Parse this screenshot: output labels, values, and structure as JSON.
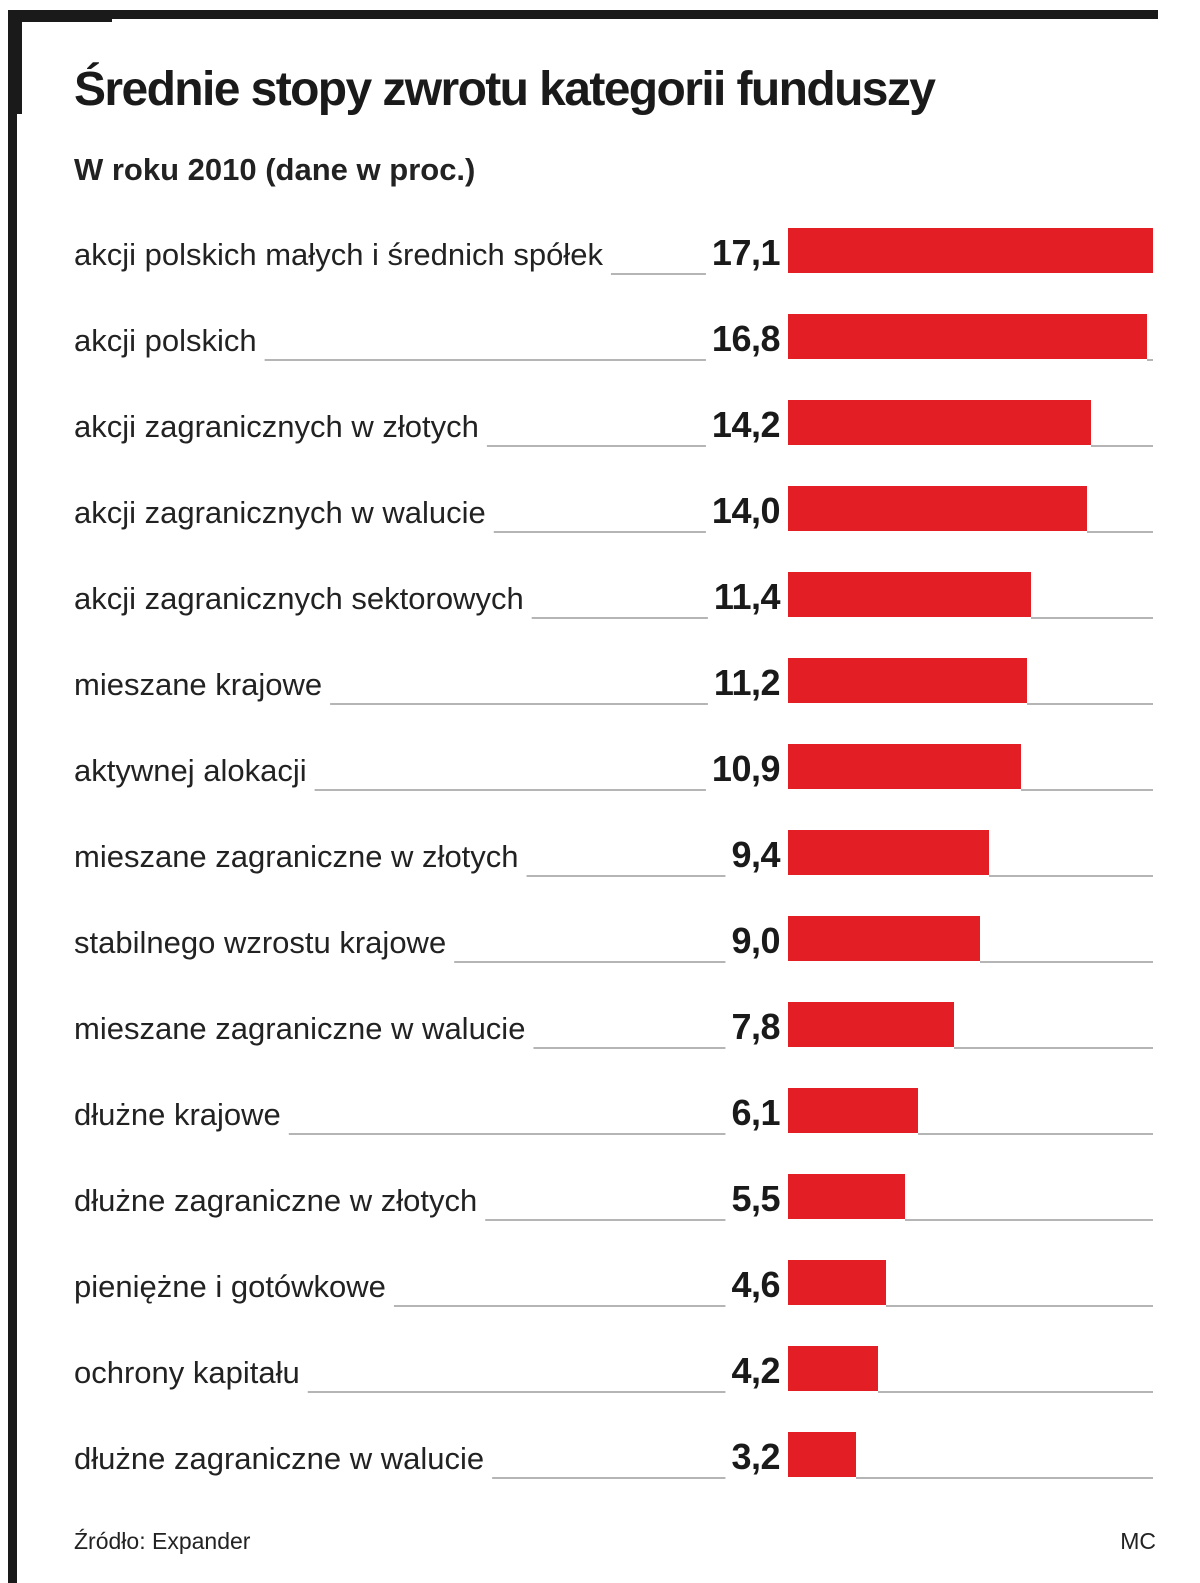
{
  "header": {
    "title": "Średnie stopy zwrotu kategorii funduszy",
    "subtitle": "W roku 2010 (dane w proc.)"
  },
  "footer": {
    "source": "Źródło: Expander",
    "credit": "MC"
  },
  "colors": {
    "bar": "#e31e24",
    "leader": "#b5b5b5",
    "frame": "#1a1a1a",
    "text": "#222222"
  },
  "chart_data": {
    "type": "bar",
    "orientation": "horizontal",
    "title": "Średnie stopy zwrotu kategorii funduszy",
    "subtitle": "W roku 2010 (dane w proc.)",
    "categories": [
      "akcji polskich małych i średnich spółek",
      "akcji polskich",
      "akcji zagranicznych w złotych",
      "akcji zagranicznych w walucie",
      "akcji zagranicznych sektorowych",
      "mieszane krajowe",
      "aktywnej alokacji",
      "mieszane zagraniczne w złotych",
      "stabilnego wzrostu krajowe",
      "mieszane zagraniczne w walucie",
      "dłużne krajowe",
      "dłużne zagraniczne w złotych",
      "pieniężne i gotówkowe",
      "ochrony kapitału",
      "dłużne zagraniczne w walucie"
    ],
    "values": [
      17.1,
      16.8,
      14.2,
      14.0,
      11.4,
      11.2,
      10.9,
      9.4,
      9.0,
      7.8,
      6.1,
      5.5,
      4.6,
      4.2,
      3.2
    ],
    "value_labels": [
      "17,1",
      "16,8",
      "14,2",
      "14,0",
      "11,4",
      "11,2",
      "10,9",
      "9,4",
      "9,0",
      "7,8",
      "6,1",
      "5,5",
      "4,6",
      "4,2",
      "3,2"
    ],
    "xlim": [
      0,
      17.1
    ],
    "grid": false,
    "legend": "none"
  }
}
